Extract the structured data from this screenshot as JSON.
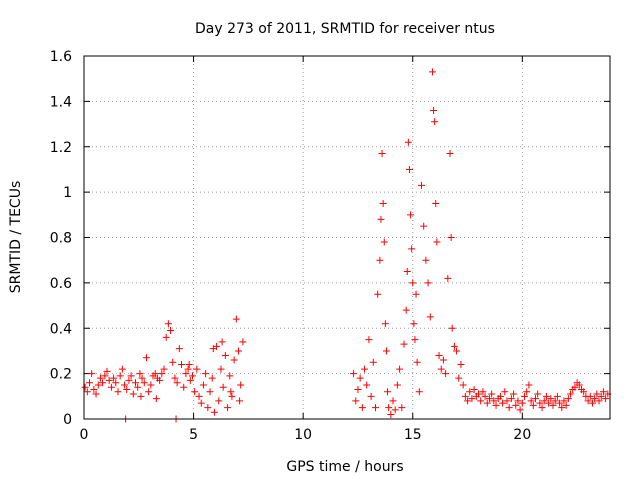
{
  "chart_data": {
    "type": "scatter",
    "title": "Day 273 of 2011, SRMTID for receiver ntus",
    "xlabel": "GPS time / hours",
    "ylabel": "SRMTID / TECUs",
    "xlim": [
      0,
      24
    ],
    "ylim": [
      0,
      1.6
    ],
    "xticks": [
      "0",
      "5",
      "10",
      "15",
      "20"
    ],
    "yticks": [
      "0",
      "0.2",
      "0.4",
      "0.6",
      "0.8",
      "1",
      "1.2",
      "1.4",
      "1.6"
    ],
    "grid": true,
    "marker": "+",
    "color": "#ff0000",
    "series": [
      {
        "name": "SRMTID",
        "points": [
          [
            0.05,
            0.14
          ],
          [
            0.15,
            0.12
          ],
          [
            0.25,
            0.16
          ],
          [
            0.35,
            0.2
          ],
          [
            0.45,
            0.13
          ],
          [
            0.55,
            0.11
          ],
          [
            0.65,
            0.15
          ],
          [
            0.75,
            0.18
          ],
          [
            0.85,
            0.16
          ],
          [
            0.95,
            0.19
          ],
          [
            1.05,
            0.21
          ],
          [
            1.15,
            0.17
          ],
          [
            1.25,
            0.14
          ],
          [
            1.35,
            0.18
          ],
          [
            1.45,
            0.16
          ],
          [
            1.55,
            0.12
          ],
          [
            1.65,
            0.19
          ],
          [
            1.75,
            0.22
          ],
          [
            1.85,
            0.15
          ],
          [
            1.95,
            0.13
          ],
          [
            2.05,
            0.17
          ],
          [
            2.15,
            0.19
          ],
          [
            2.25,
            0.11
          ],
          [
            2.35,
            0.16
          ],
          [
            2.45,
            0.14
          ],
          [
            2.55,
            0.2
          ],
          [
            2.65,
            0.18
          ],
          [
            2.75,
            0.16
          ],
          [
            2.85,
            0.27
          ],
          [
            2.95,
            0.12
          ],
          [
            3.05,
            0.15
          ],
          [
            3.15,
            0.19
          ],
          [
            3.25,
            0.2
          ],
          [
            3.35,
            0.18
          ],
          [
            3.45,
            0.17
          ],
          [
            3.55,
            0.2
          ],
          [
            3.65,
            0.22
          ],
          [
            3.75,
            0.36
          ],
          [
            3.85,
            0.42
          ],
          [
            3.95,
            0.39
          ],
          [
            4.05,
            0.25
          ],
          [
            4.15,
            0.18
          ],
          [
            4.25,
            0.16
          ],
          [
            4.35,
            0.31
          ],
          [
            4.45,
            0.24
          ],
          [
            4.55,
            0.14
          ],
          [
            4.65,
            0.2
          ],
          [
            4.75,
            0.22
          ],
          [
            4.85,
            0.17
          ],
          [
            4.95,
            0.19
          ],
          [
            5.05,
            0.12
          ],
          [
            5.15,
            0.22
          ],
          [
            5.25,
            0.1
          ],
          [
            5.35,
            0.07
          ],
          [
            5.45,
            0.15
          ],
          [
            5.55,
            0.2
          ],
          [
            5.65,
            0.05
          ],
          [
            5.75,
            0.12
          ],
          [
            5.85,
            0.18
          ],
          [
            5.95,
            0.03
          ],
          [
            6.05,
            0.32
          ],
          [
            6.15,
            0.08
          ],
          [
            6.25,
            0.22
          ],
          [
            6.35,
            0.14
          ],
          [
            6.45,
            0.28
          ],
          [
            6.55,
            0.05
          ],
          [
            6.65,
            0.19
          ],
          [
            6.75,
            0.1
          ],
          [
            6.85,
            0.26
          ],
          [
            6.95,
            0.44
          ],
          [
            7.05,
            0.3
          ],
          [
            7.15,
            0.15
          ],
          [
            7.25,
            0.34
          ],
          [
            2.6,
            0.1
          ],
          [
            3.3,
            0.09
          ],
          [
            4.8,
            0.24
          ],
          [
            5.9,
            0.31
          ],
          [
            6.3,
            0.34
          ],
          [
            6.7,
            0.12
          ],
          [
            7.1,
            0.08
          ],
          [
            1.9,
            0.0
          ],
          [
            4.2,
            0.0
          ],
          [
            12.3,
            0.2
          ],
          [
            12.4,
            0.08
          ],
          [
            12.5,
            0.13
          ],
          [
            12.6,
            0.18
          ],
          [
            12.7,
            0.05
          ],
          [
            12.8,
            0.22
          ],
          [
            12.9,
            0.15
          ],
          [
            13.0,
            0.35
          ],
          [
            13.1,
            0.1
          ],
          [
            13.2,
            0.25
          ],
          [
            13.3,
            0.05
          ],
          [
            13.4,
            0.55
          ],
          [
            13.5,
            0.7
          ],
          [
            13.55,
            0.88
          ],
          [
            13.6,
            1.17
          ],
          [
            13.65,
            0.95
          ],
          [
            13.7,
            0.78
          ],
          [
            13.75,
            0.42
          ],
          [
            13.8,
            0.3
          ],
          [
            13.85,
            0.12
          ],
          [
            13.9,
            0.05
          ],
          [
            14.0,
            0.02
          ],
          [
            14.1,
            0.08
          ],
          [
            14.2,
            0.04
          ],
          [
            14.3,
            0.15
          ],
          [
            14.4,
            0.22
          ],
          [
            14.5,
            0.05
          ],
          [
            14.6,
            0.33
          ],
          [
            14.7,
            0.48
          ],
          [
            14.75,
            0.65
          ],
          [
            14.8,
            1.22
          ],
          [
            14.85,
            1.1
          ],
          [
            14.9,
            0.9
          ],
          [
            14.95,
            0.75
          ],
          [
            15.0,
            0.6
          ],
          [
            15.05,
            0.42
          ],
          [
            15.1,
            0.35
          ],
          [
            15.15,
            0.55
          ],
          [
            15.2,
            0.25
          ],
          [
            15.3,
            0.12
          ],
          [
            15.4,
            1.03
          ],
          [
            15.5,
            0.85
          ],
          [
            15.6,
            0.7
          ],
          [
            15.7,
            0.6
          ],
          [
            15.8,
            0.45
          ],
          [
            15.9,
            1.53
          ],
          [
            15.95,
            1.36
          ],
          [
            16.0,
            1.31
          ],
          [
            16.05,
            0.95
          ],
          [
            16.1,
            0.78
          ],
          [
            16.2,
            0.28
          ],
          [
            16.3,
            0.22
          ],
          [
            16.4,
            0.26
          ],
          [
            16.5,
            0.2
          ],
          [
            16.6,
            0.62
          ],
          [
            16.7,
            1.17
          ],
          [
            16.75,
            0.8
          ],
          [
            16.8,
            0.4
          ],
          [
            16.9,
            0.32
          ],
          [
            17.0,
            0.3
          ],
          [
            17.1,
            0.18
          ],
          [
            17.2,
            0.24
          ],
          [
            17.3,
            0.15
          ],
          [
            17.4,
            0.1
          ],
          [
            17.5,
            0.08
          ],
          [
            17.6,
            0.12
          ],
          [
            17.7,
            0.09
          ],
          [
            17.8,
            0.13
          ],
          [
            17.9,
            0.1
          ],
          [
            18.0,
            0.11
          ],
          [
            18.1,
            0.08
          ],
          [
            18.2,
            0.12
          ],
          [
            18.3,
            0.1
          ],
          [
            18.4,
            0.07
          ],
          [
            18.5,
            0.09
          ],
          [
            18.6,
            0.11
          ],
          [
            18.7,
            0.08
          ],
          [
            18.8,
            0.06
          ],
          [
            18.9,
            0.09
          ],
          [
            19.0,
            0.1
          ],
          [
            19.1,
            0.07
          ],
          [
            19.2,
            0.12
          ],
          [
            19.3,
            0.08
          ],
          [
            19.4,
            0.05
          ],
          [
            19.5,
            0.09
          ],
          [
            19.6,
            0.11
          ],
          [
            19.7,
            0.06
          ],
          [
            19.8,
            0.08
          ],
          [
            19.9,
            0.04
          ],
          [
            20.0,
            0.07
          ],
          [
            20.1,
            0.1
          ],
          [
            20.2,
            0.12
          ],
          [
            20.3,
            0.15
          ],
          [
            20.4,
            0.08
          ],
          [
            20.5,
            0.06
          ],
          [
            20.6,
            0.09
          ],
          [
            20.7,
            0.11
          ],
          [
            20.8,
            0.07
          ],
          [
            20.9,
            0.05
          ],
          [
            21.0,
            0.08
          ],
          [
            21.1,
            0.1
          ],
          [
            21.2,
            0.07
          ],
          [
            21.3,
            0.09
          ],
          [
            21.4,
            0.06
          ],
          [
            21.5,
            0.08
          ],
          [
            21.6,
            0.1
          ],
          [
            21.7,
            0.07
          ],
          [
            21.8,
            0.05
          ],
          [
            21.9,
            0.08
          ],
          [
            22.0,
            0.06
          ],
          [
            22.1,
            0.09
          ],
          [
            22.2,
            0.11
          ],
          [
            22.3,
            0.13
          ],
          [
            22.4,
            0.14
          ],
          [
            22.5,
            0.16
          ],
          [
            22.6,
            0.15
          ],
          [
            22.7,
            0.13
          ],
          [
            22.8,
            0.12
          ],
          [
            22.9,
            0.1
          ],
          [
            23.0,
            0.08
          ],
          [
            23.1,
            0.1
          ],
          [
            23.2,
            0.07
          ],
          [
            23.3,
            0.09
          ],
          [
            23.4,
            0.11
          ],
          [
            23.5,
            0.08
          ],
          [
            23.6,
            0.1
          ],
          [
            23.7,
            0.12
          ],
          [
            23.8,
            0.09
          ],
          [
            23.9,
            0.11
          ]
        ]
      }
    ]
  }
}
